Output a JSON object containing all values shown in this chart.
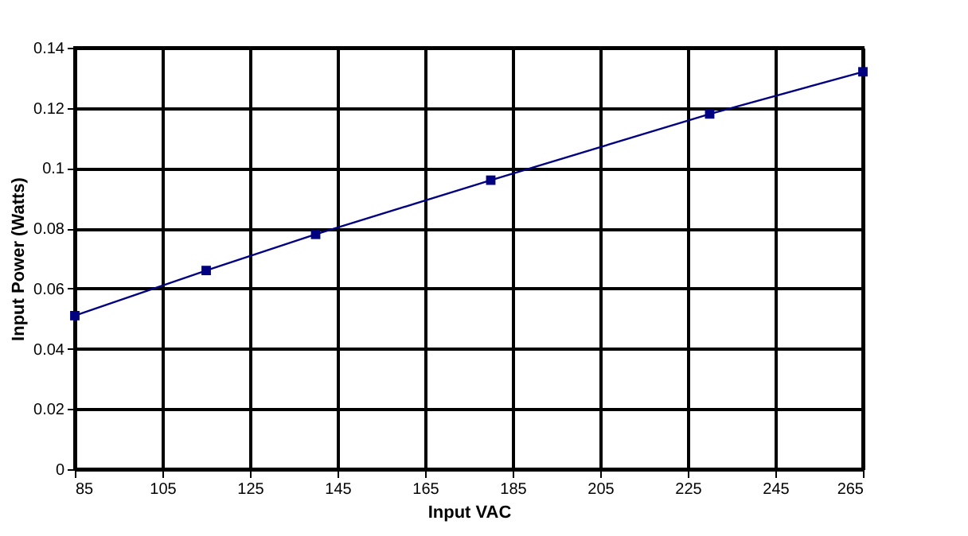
{
  "chart_data": {
    "type": "line",
    "xlabel": "Input VAC",
    "ylabel": "Input Power (Watts)",
    "x": [
      85,
      115,
      140,
      180,
      230,
      265
    ],
    "series": [
      {
        "color": "#000080",
        "values": [
          0.051,
          0.066,
          0.078,
          0.096,
          0.118,
          0.132
        ]
      }
    ],
    "xlim": [
      85,
      265
    ],
    "xticks": [
      85,
      105,
      125,
      145,
      165,
      185,
      205,
      225,
      245,
      265
    ],
    "ylim": [
      0,
      0.14
    ],
    "yticks": [
      0,
      0.02,
      0.04,
      0.06,
      0.08,
      0.1,
      0.12,
      0.14
    ],
    "grid": true,
    "marker": "square",
    "line_style": "solid"
  }
}
